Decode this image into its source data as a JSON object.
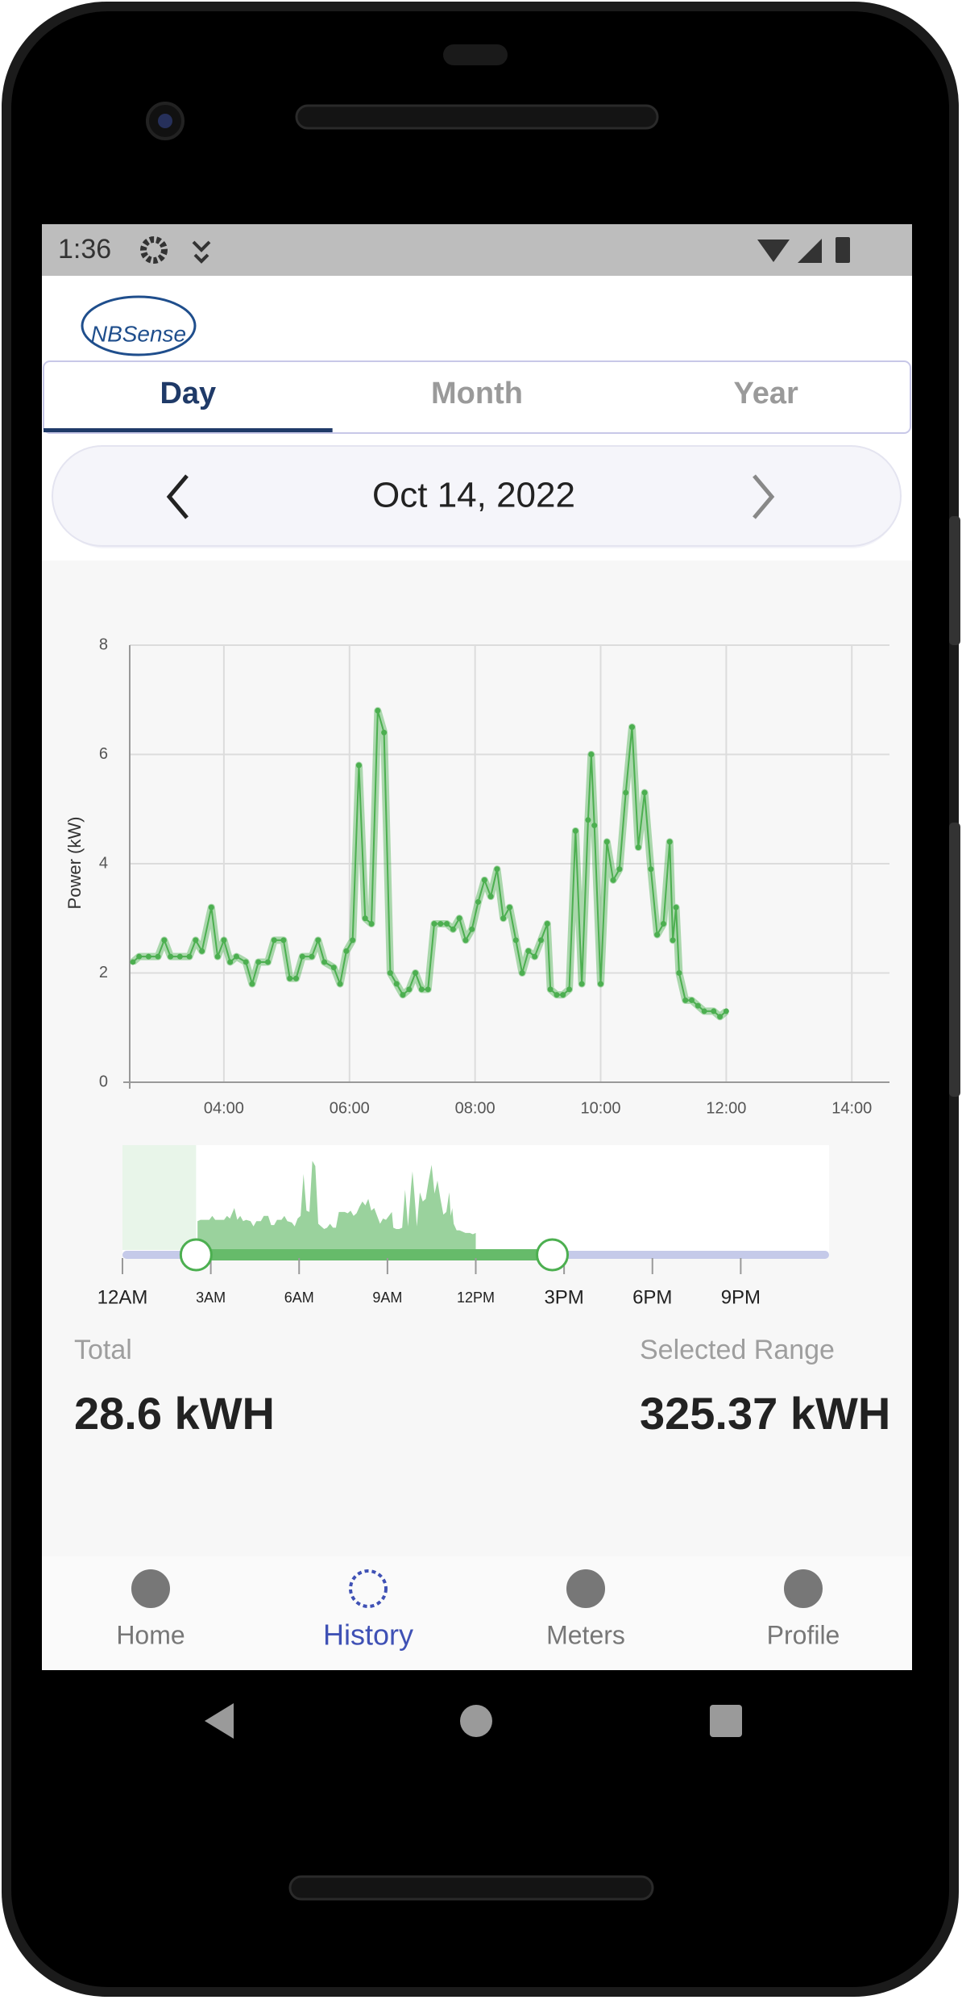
{
  "status_bar": {
    "time": "1:36"
  },
  "logo": "NBSense",
  "tabs": [
    {
      "label": "Day",
      "selected": true
    },
    {
      "label": "Month",
      "selected": false
    },
    {
      "label": "Year",
      "selected": false
    }
  ],
  "date_nav": {
    "date": "Oct 14, 2022"
  },
  "chart_data": {
    "type": "line",
    "y_label": "Power (kW)",
    "color": "#4caf50",
    "x": [
      2.55,
      2.65,
      2.8,
      2.95,
      3.05,
      3.15,
      3.3,
      3.45,
      3.55,
      3.65,
      3.8,
      3.9,
      4.0,
      4.1,
      4.2,
      4.35,
      4.45,
      4.55,
      4.7,
      4.8,
      4.95,
      5.05,
      5.15,
      5.25,
      5.4,
      5.5,
      5.6,
      5.75,
      5.85,
      5.95,
      6.05,
      6.15,
      6.25,
      6.35,
      6.45,
      6.55,
      6.65,
      6.75,
      6.85,
      6.95,
      7.05,
      7.15,
      7.25,
      7.35,
      7.45,
      7.55,
      7.65,
      7.75,
      7.85,
      7.95,
      8.05,
      8.15,
      8.25,
      8.35,
      8.45,
      8.55,
      8.65,
      8.75,
      8.85,
      8.95,
      9.05,
      9.15,
      9.2,
      9.3,
      9.4,
      9.5,
      9.6,
      9.7,
      9.8,
      9.85,
      9.9,
      10.0,
      10.1,
      10.2,
      10.3,
      10.4,
      10.5,
      10.6,
      10.7,
      10.8,
      10.9,
      11.0,
      11.1,
      11.15,
      11.2,
      11.25,
      11.35,
      11.45,
      11.55,
      11.65,
      11.8,
      11.9,
      12.0
    ],
    "values": [
      2.2,
      2.3,
      2.3,
      2.3,
      2.6,
      2.3,
      2.3,
      2.3,
      2.6,
      2.4,
      3.2,
      2.3,
      2.6,
      2.2,
      2.3,
      2.2,
      1.8,
      2.2,
      2.2,
      2.6,
      2.6,
      1.9,
      1.9,
      2.3,
      2.3,
      2.6,
      2.2,
      2.1,
      1.8,
      2.4,
      2.6,
      5.8,
      3.0,
      2.9,
      6.8,
      6.4,
      2.0,
      1.8,
      1.6,
      1.7,
      2.0,
      1.7,
      1.7,
      2.9,
      2.9,
      2.9,
      2.8,
      3.0,
      2.6,
      2.8,
      3.3,
      3.7,
      3.4,
      3.9,
      3.0,
      3.2,
      2.6,
      2.0,
      2.4,
      2.3,
      2.6,
      2.9,
      1.7,
      1.6,
      1.6,
      1.7,
      4.6,
      1.8,
      4.8,
      6.0,
      4.7,
      1.8,
      4.4,
      3.7,
      3.9,
      5.3,
      6.5,
      4.3,
      5.3,
      3.9,
      2.7,
      2.9,
      4.4,
      2.6,
      3.2,
      2.0,
      1.5,
      1.5,
      1.4,
      1.3,
      1.3,
      1.2,
      1.3
    ],
    "xlim": [
      2.5,
      14.6
    ],
    "xticks": [
      {
        "value": 4,
        "label": "04:00"
      },
      {
        "value": 6,
        "label": "06:00"
      },
      {
        "value": 8,
        "label": "08:00"
      },
      {
        "value": 10,
        "label": "10:00"
      },
      {
        "value": 12,
        "label": "12:00"
      },
      {
        "value": 14,
        "label": "14:00"
      }
    ],
    "ylim": [
      0,
      8
    ],
    "yticks": [
      0,
      2,
      4,
      6,
      8
    ],
    "grid": true
  },
  "range_slider": {
    "labels": [
      "12AM",
      "3AM",
      "6AM",
      "9AM",
      "12PM",
      "3PM",
      "6PM",
      "9PM"
    ]
  },
  "summary": {
    "total_label": "Total",
    "total_value": "28.6 kWH",
    "range_label": "Selected Range",
    "range_value": "325.37 kWH"
  },
  "bottom_nav": [
    {
      "label": "Home",
      "active": false
    },
    {
      "label": "History",
      "active": true
    },
    {
      "label": "Meters",
      "active": false
    },
    {
      "label": "Profile",
      "active": false
    }
  ]
}
